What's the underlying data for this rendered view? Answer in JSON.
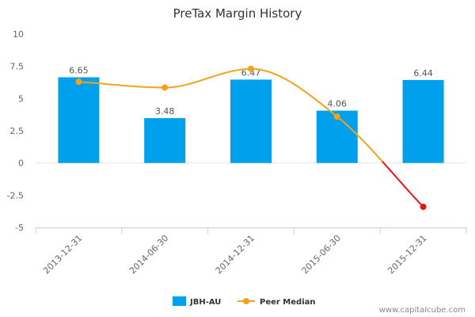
{
  "chart_data": {
    "type": "bar",
    "title": "PreTax Margin History",
    "categories": [
      "2013-12-31",
      "2014-06-30",
      "2014-12-31",
      "2015-06-30",
      "2015-12-31"
    ],
    "series": [
      {
        "name": "JBH-AU",
        "type": "bar",
        "values": [
          6.65,
          3.48,
          6.47,
          4.06,
          6.44
        ],
        "labels": [
          "6.65",
          "3.48",
          "6.47",
          "4.06",
          "6.44"
        ],
        "color": "#00a0ec"
      },
      {
        "name": "Peer Median",
        "type": "line",
        "smooth": true,
        "values": [
          6.3,
          5.85,
          7.3,
          3.6,
          -3.4
        ],
        "color": "#f5a21b",
        "negative_color": "#ee1111"
      }
    ],
    "yticks": [
      "10",
      "7.5",
      "5",
      "2.5",
      "0",
      "-2.5",
      "-5"
    ],
    "ylim": [
      -5,
      10
    ],
    "grid": false,
    "legend_position": "bottom"
  },
  "watermark": "www.capitalcube.com"
}
